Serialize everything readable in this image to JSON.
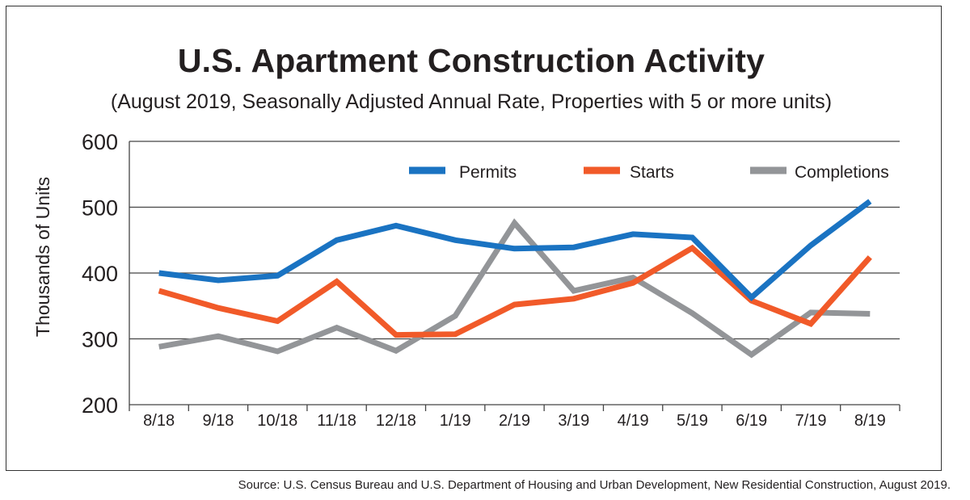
{
  "title": "U.S. Apartment Construction Activity",
  "subtitle": "(August 2019, Seasonally Adjusted Annual Rate, Properties with 5 or more units)",
  "source": "Source: U.S. Census Bureau and U.S. Department of Housing and Urban Development, New Residential Construction, August 2019.",
  "colors": {
    "permits": "#1a73c2",
    "starts": "#f15a29",
    "completions": "#939598",
    "grid": "#444444"
  },
  "chart_data": {
    "type": "line",
    "ylabel": "Thousands of Units",
    "ylim": [
      200,
      600
    ],
    "yticks": [
      200,
      300,
      400,
      500,
      600
    ],
    "grid": true,
    "legend_placement": "top-right",
    "categories": [
      "8/18",
      "9/18",
      "10/18",
      "11/18",
      "12/18",
      "1/19",
      "2/19",
      "3/19",
      "4/19",
      "5/19",
      "6/19",
      "7/19",
      "8/19"
    ],
    "series": [
      {
        "name": "Permits",
        "color": "#1a73c2",
        "values": [
          400,
          389,
          396,
          450,
          472,
          450,
          437,
          439,
          459,
          454,
          363,
          442,
          509
        ]
      },
      {
        "name": "Starts",
        "color": "#f15a29",
        "values": [
          373,
          347,
          327,
          387,
          306,
          307,
          352,
          361,
          385,
          438,
          358,
          323,
          424
        ]
      },
      {
        "name": "Completions",
        "color": "#939598",
        "values": [
          288,
          304,
          281,
          317,
          282,
          335,
          476,
          373,
          393,
          339,
          276,
          340,
          338
        ]
      }
    ]
  }
}
